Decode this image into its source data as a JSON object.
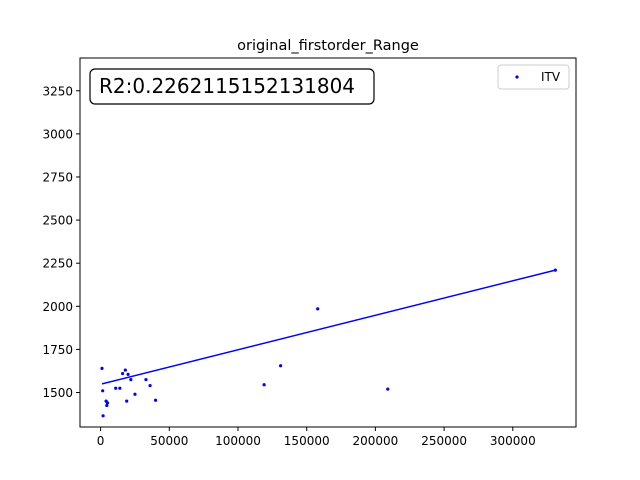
{
  "chart_data": {
    "type": "scatter",
    "title": "original_firstorder_Range",
    "xlabel": "",
    "ylabel": "",
    "xlim": [
      -15000,
      346000
    ],
    "ylim": [
      1300,
      3440
    ],
    "x_ticks": [
      0,
      50000,
      100000,
      150000,
      200000,
      250000,
      300000
    ],
    "y_ticks": [
      1500,
      1750,
      2000,
      2250,
      2500,
      2750,
      3000,
      3250
    ],
    "legend": {
      "placement": "top-right",
      "entries": [
        "ITV"
      ]
    },
    "annotation": "R2:0.2262115152131804",
    "grid": false,
    "series": [
      {
        "name": "ITV",
        "color": "#0000ff",
        "points": [
          [
            1000,
            1640
          ],
          [
            1500,
            1510
          ],
          [
            1800,
            1365
          ],
          [
            4000,
            1450
          ],
          [
            4500,
            1425
          ],
          [
            5000,
            1440
          ],
          [
            11000,
            1525
          ],
          [
            14000,
            1525
          ],
          [
            16000,
            1610
          ],
          [
            18000,
            1630
          ],
          [
            19000,
            1450
          ],
          [
            20000,
            1605
          ],
          [
            22000,
            1575
          ],
          [
            25000,
            1490
          ],
          [
            33000,
            1575
          ],
          [
            36000,
            1540
          ],
          [
            40000,
            1455
          ],
          [
            119000,
            1545
          ],
          [
            131000,
            1655
          ],
          [
            158000,
            1985
          ],
          [
            209000,
            1520
          ],
          [
            331000,
            2210
          ]
        ]
      }
    ],
    "fit_line": {
      "color": "#0000ff",
      "x": [
        1000,
        331000
      ],
      "y": [
        1550,
        2210
      ]
    }
  }
}
